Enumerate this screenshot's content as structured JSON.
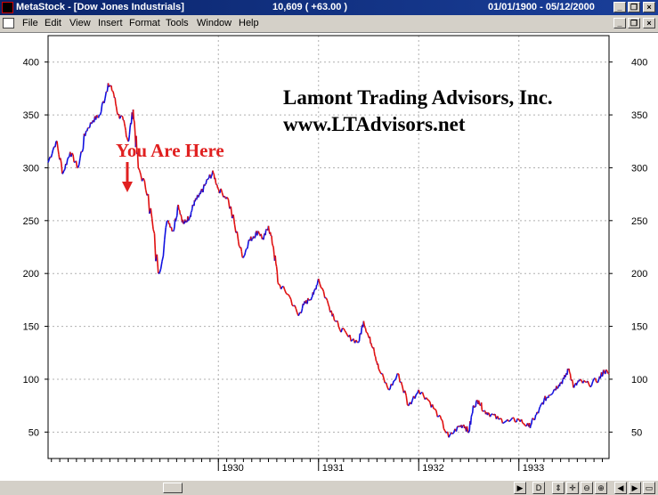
{
  "window": {
    "app_title": "MetaStock - [Dow Jones Industrials]",
    "quote": "10,609 ( +63.00 )",
    "date_range": "01/01/1900 - 05/12/2000"
  },
  "menu": [
    {
      "label": "File"
    },
    {
      "label": "Edit"
    },
    {
      "label": "View"
    },
    {
      "label": "Insert"
    },
    {
      "label": "Format"
    },
    {
      "label": "Tools"
    },
    {
      "label": "Window"
    },
    {
      "label": "Help"
    }
  ],
  "annotations": {
    "company": "Lamont Trading Advisors, Inc.",
    "website": "www.LTAdvisors.net",
    "marker": "You Are Here"
  },
  "colors": {
    "up": "#1010e0",
    "down": "#e01010",
    "marker": "#e02020"
  },
  "statusbar": {
    "buttons": [
      "right-arrow-icon",
      "D",
      "move-icon",
      "crosshair-icon",
      "zoom-out-icon",
      "zoom-in-icon",
      "left-arrow-icon",
      "right-arrow-icon",
      "window-icon"
    ]
  },
  "chart_data": {
    "type": "line",
    "title": "",
    "xlabel": "",
    "ylabel": "",
    "ylim": [
      25,
      425
    ],
    "y_ticks": [
      50,
      100,
      150,
      200,
      250,
      300,
      350,
      400
    ],
    "x_ticks": [
      "1930",
      "1931",
      "1932",
      "1933"
    ],
    "xlim": [
      1928.3,
      1933.9
    ],
    "grid": true,
    "series": [
      {
        "x": [
          1928.3,
          1928.38,
          1928.45,
          1928.52,
          1928.6,
          1928.68,
          1928.75,
          1928.82,
          1928.9,
          1928.95,
          1929.0,
          1929.05,
          1929.1,
          1929.15,
          1929.2,
          1929.3,
          1929.4,
          1929.5,
          1929.55,
          1929.6,
          1929.65,
          1929.68,
          1929.72,
          1929.75,
          1929.78,
          1929.82,
          1929.85,
          1929.9,
          1929.95,
          1930.0,
          1930.1,
          1930.2,
          1930.25,
          1930.3,
          1930.35,
          1930.4,
          1930.45,
          1930.5,
          1930.55,
          1930.6,
          1930.7,
          1930.8,
          1930.85,
          1930.9,
          1930.95,
          1931.0,
          1931.1,
          1931.15,
          1931.2,
          1931.3,
          1931.4,
          1931.45,
          1931.5,
          1931.55,
          1931.6,
          1931.7,
          1931.8,
          1931.9,
          1932.0,
          1932.1,
          1932.2,
          1932.3,
          1932.4,
          1932.45,
          1932.5,
          1932.55,
          1932.6,
          1932.65,
          1932.7,
          1932.8,
          1932.9,
          1933.0,
          1933.1,
          1933.15,
          1933.2,
          1933.25,
          1933.3,
          1933.35,
          1933.4,
          1933.45,
          1933.5,
          1933.55,
          1933.6,
          1933.7,
          1933.8,
          1933.85,
          1933.9
        ],
        "values": [
          305,
          325,
          295,
          315,
          300,
          335,
          345,
          350,
          380,
          372,
          350,
          345,
          325,
          355,
          300,
          275,
          200,
          250,
          240,
          265,
          247,
          250,
          255,
          265,
          270,
          275,
          280,
          290,
          295,
          280,
          270,
          230,
          215,
          230,
          235,
          240,
          232,
          245,
          225,
          190,
          180,
          160,
          170,
          175,
          180,
          195,
          170,
          160,
          150,
          140,
          135,
          155,
          140,
          130,
          110,
          90,
          105,
          75,
          90,
          80,
          65,
          45,
          55,
          57,
          50,
          75,
          80,
          70,
          68,
          62,
          60,
          62,
          55,
          62,
          70,
          80,
          85,
          90,
          95,
          100,
          110,
          92,
          98,
          95,
          100,
          108,
          105
        ]
      }
    ]
  }
}
